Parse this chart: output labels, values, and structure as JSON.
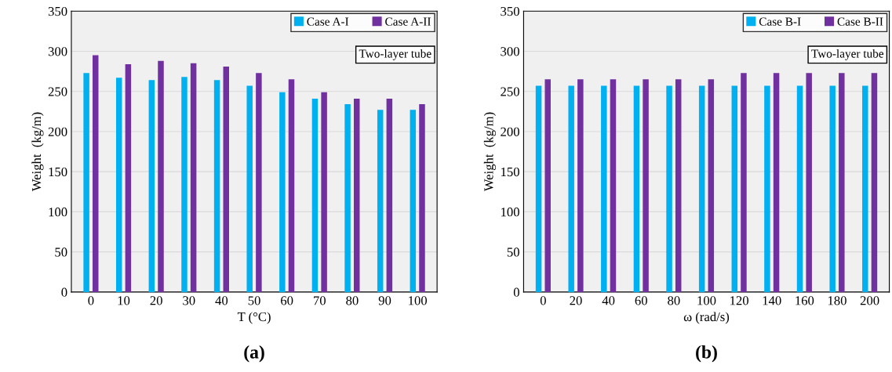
{
  "chart_data": [
    {
      "type": "bar",
      "xlabel": "T (°C)",
      "ylabel": "Weight  (kg/m)",
      "categories": [
        "0",
        "10",
        "20",
        "30",
        "40",
        "50",
        "60",
        "70",
        "80",
        "90",
        "100"
      ],
      "series": [
        {
          "name": "Case A-I",
          "color": "#00b0f0",
          "values": [
            273,
            267,
            264,
            268,
            264,
            257,
            249,
            241,
            234,
            227,
            227
          ]
        },
        {
          "name": "Case A-II",
          "color": "#7030a0",
          "values": [
            295,
            284,
            288,
            285,
            281,
            273,
            265,
            249,
            241,
            241,
            234
          ]
        }
      ],
      "ylim": [
        0,
        350
      ],
      "yticks": [
        0,
        50,
        100,
        150,
        200,
        250,
        300,
        350
      ],
      "grid": "y",
      "legend": "top right",
      "annotations": [
        "Two-layer tube",
        "(a)"
      ]
    },
    {
      "type": "bar",
      "xlabel": "ω (rad/s)",
      "ylabel": "Weight  (kg/m)",
      "categories": [
        "0",
        "20",
        "40",
        "60",
        "80",
        "100",
        "120",
        "140",
        "160",
        "180",
        "200"
      ],
      "series": [
        {
          "name": "Case B-I",
          "color": "#00b0f0",
          "values": [
            257,
            257,
            257,
            257,
            257,
            257,
            257,
            257,
            257,
            257,
            257
          ]
        },
        {
          "name": "Case B-II",
          "color": "#7030a0",
          "values": [
            265,
            265,
            265,
            265,
            265,
            265,
            273,
            273,
            273,
            273,
            273
          ]
        }
      ],
      "ylim": [
        0,
        350
      ],
      "yticks": [
        0,
        50,
        100,
        150,
        200,
        250,
        300,
        350
      ],
      "grid": "y",
      "legend": "top right",
      "annotations": [
        "Two-layer tube",
        "(b)"
      ]
    }
  ]
}
